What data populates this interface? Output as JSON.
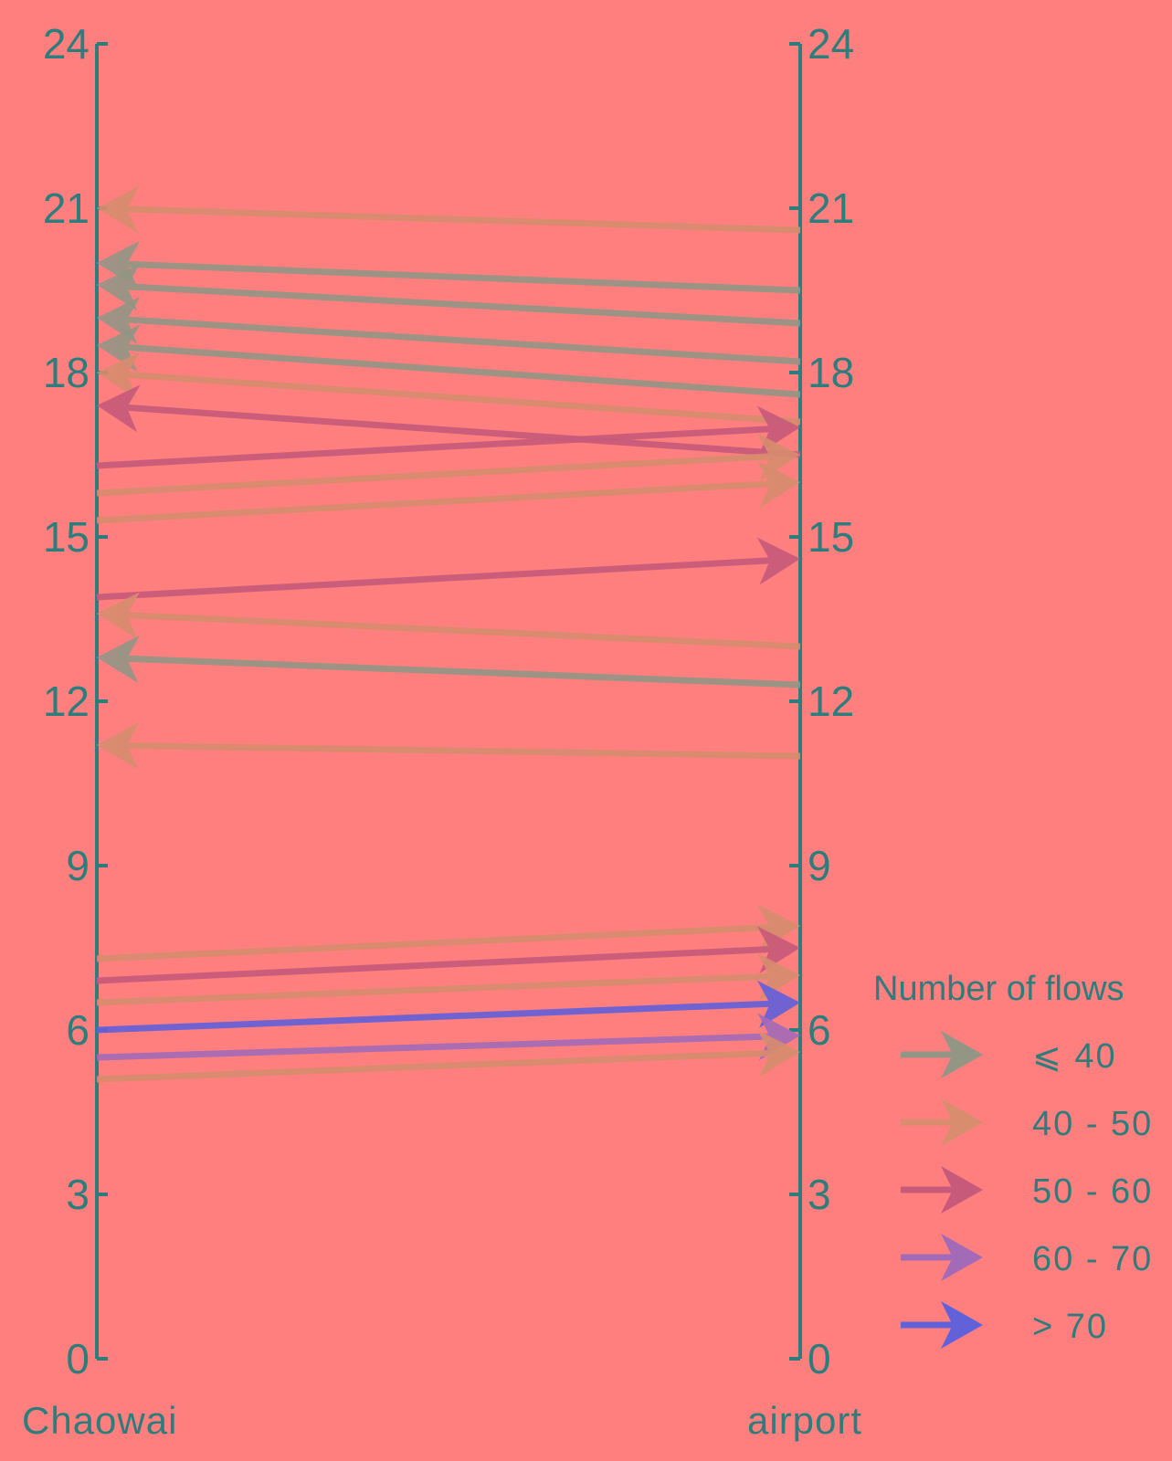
{
  "chart_data": {
    "type": "flow-arrows",
    "title": "",
    "left_axis_label": "Chaowai",
    "right_axis_label": "airport",
    "ylim": [
      0,
      24
    ],
    "yticks": [
      "0",
      "3",
      "6",
      "9",
      "12",
      "15",
      "18",
      "21",
      "24"
    ],
    "legend": {
      "title": "Number of flows",
      "position": "right",
      "entries": [
        {
          "label": "⩽ 40",
          "color": "#939685"
        },
        {
          "label": "40 - 50",
          "color": "#D78D6E"
        },
        {
          "label": "50 - 60",
          "color": "#C75A7A"
        },
        {
          "label": "60 - 70",
          "color": "#A36AB8"
        },
        {
          "label": "> 70",
          "color": "#6161DA"
        }
      ]
    },
    "flows": [
      {
        "from": "airport",
        "from_value": 20.6,
        "to_value": 21.0,
        "category": "40 - 50"
      },
      {
        "from": "airport",
        "from_value": 19.5,
        "to_value": 20.0,
        "category": "⩽ 40"
      },
      {
        "from": "airport",
        "from_value": 18.9,
        "to_value": 19.6,
        "category": "⩽ 40"
      },
      {
        "from": "airport",
        "from_value": 18.2,
        "to_value": 19.0,
        "category": "⩽ 40"
      },
      {
        "from": "airport",
        "from_value": 17.6,
        "to_value": 18.5,
        "category": "⩽ 40"
      },
      {
        "from": "airport",
        "from_value": 17.1,
        "to_value": 18.0,
        "category": "40 - 50"
      },
      {
        "from": "airport",
        "from_value": 16.5,
        "to_value": 17.4,
        "category": "50 - 60"
      },
      {
        "from": "Chaowai",
        "from_value": 16.3,
        "to_value": 17.0,
        "category": "50 - 60"
      },
      {
        "from": "Chaowai",
        "from_value": 15.8,
        "to_value": 16.5,
        "category": "40 - 50"
      },
      {
        "from": "Chaowai",
        "from_value": 15.3,
        "to_value": 16.0,
        "category": "40 - 50"
      },
      {
        "from": "Chaowai",
        "from_value": 13.9,
        "to_value": 14.6,
        "category": "50 - 60"
      },
      {
        "from": "airport",
        "from_value": 13.0,
        "to_value": 13.6,
        "category": "40 - 50"
      },
      {
        "from": "airport",
        "from_value": 12.3,
        "to_value": 12.8,
        "category": "⩽ 40"
      },
      {
        "from": "airport",
        "from_value": 11.0,
        "to_value": 11.2,
        "category": "40 - 50"
      },
      {
        "from": "Chaowai",
        "from_value": 7.3,
        "to_value": 7.9,
        "category": "40 - 50"
      },
      {
        "from": "Chaowai",
        "from_value": 6.9,
        "to_value": 7.5,
        "category": "50 - 60"
      },
      {
        "from": "Chaowai",
        "from_value": 6.5,
        "to_value": 7.0,
        "category": "40 - 50"
      },
      {
        "from": "Chaowai",
        "from_value": 6.0,
        "to_value": 6.5,
        "category": "> 70"
      },
      {
        "from": "Chaowai",
        "from_value": 5.5,
        "to_value": 5.9,
        "category": "60 - 70"
      },
      {
        "from": "Chaowai",
        "from_value": 5.1,
        "to_value": 5.6,
        "category": "40 - 50"
      }
    ]
  },
  "colors": {
    "background": "#FF7F7F",
    "axis": "#2E7D7D"
  }
}
